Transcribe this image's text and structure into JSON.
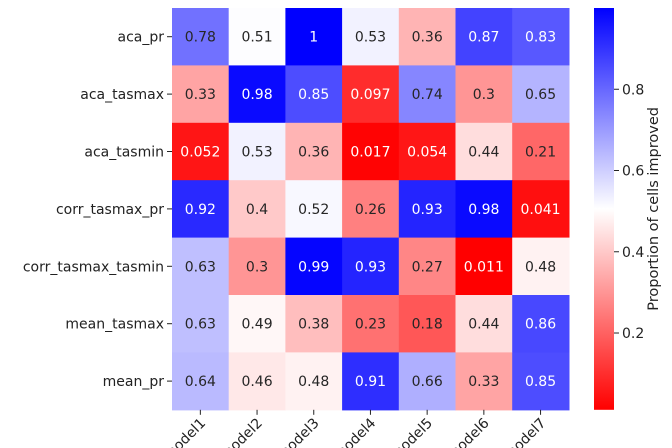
{
  "chart_data": {
    "type": "heatmap",
    "rows": [
      "aca_pr",
      "aca_tasmax",
      "aca_tasmin",
      "corr_tasmax_pr",
      "corr_tasmax_tasmin",
      "mean_tasmax",
      "mean_pr"
    ],
    "columns": [
      "model1",
      "model2",
      "model3",
      "model4",
      "model5",
      "model6",
      "model7"
    ],
    "value_labels": [
      [
        "0.78",
        "0.51",
        "1",
        "0.53",
        "0.36",
        "0.87",
        "0.83"
      ],
      [
        "0.33",
        "0.98",
        "0.85",
        "0.097",
        "0.74",
        "0.3",
        "0.65"
      ],
      [
        "0.052",
        "0.53",
        "0.36",
        "0.017",
        "0.054",
        "0.44",
        "0.21"
      ],
      [
        "0.92",
        "0.4",
        "0.52",
        "0.26",
        "0.93",
        "0.98",
        "0.041"
      ],
      [
        "0.63",
        "0.3",
        "0.99",
        "0.93",
        "0.27",
        "0.011",
        "0.48"
      ],
      [
        "0.63",
        "0.49",
        "0.38",
        "0.23",
        "0.18",
        "0.44",
        "0.86"
      ],
      [
        "0.64",
        "0.46",
        "0.48",
        "0.91",
        "0.66",
        "0.33",
        "0.85"
      ]
    ],
    "values": [
      [
        0.78,
        0.51,
        1.0,
        0.53,
        0.36,
        0.87,
        0.83
      ],
      [
        0.33,
        0.98,
        0.85,
        0.097,
        0.74,
        0.3,
        0.65
      ],
      [
        0.052,
        0.53,
        0.36,
        0.017,
        0.054,
        0.44,
        0.21
      ],
      [
        0.92,
        0.4,
        0.52,
        0.26,
        0.93,
        0.98,
        0.041
      ],
      [
        0.63,
        0.3,
        0.99,
        0.93,
        0.27,
        0.011,
        0.48
      ],
      [
        0.63,
        0.49,
        0.38,
        0.23,
        0.18,
        0.44,
        0.86
      ],
      [
        0.64,
        0.46,
        0.48,
        0.91,
        0.66,
        0.33,
        0.85
      ]
    ],
    "colormap": "bwr_r",
    "color_low": "#ff0000",
    "color_mid": "#ffffff",
    "color_high": "#0000ff",
    "vmin": 0.011,
    "vmax": 1.0,
    "colorbar": {
      "label": "Proportion of cells improved",
      "ticks": [
        "0.2",
        "0.4",
        "0.6",
        "0.8"
      ]
    }
  }
}
